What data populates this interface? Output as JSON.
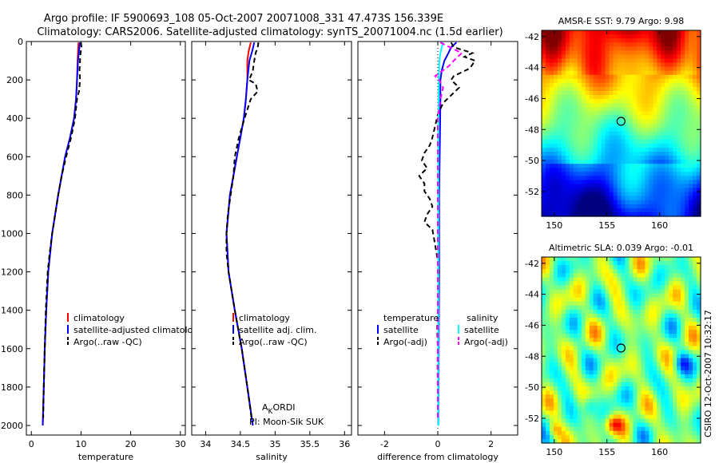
{
  "title_line1": "Argo profile: IF 5900693_108 05-Oct-2007 20071008_331 47.473S 156.339E",
  "title_line2": "Climatology: CARS2006. Satellite-adjusted climatology: synTS_20071004.nc (1.5d earlier)",
  "side_label": "CSIRO 12-Oct-2007 10:32:17",
  "colors": {
    "climatology": "#ff0000",
    "satellite": "#0000ff",
    "argo": "#000000",
    "temp_satellite": "#0000ff",
    "sal_satellite": "#00ffff",
    "sal_argo": "#ff00ff"
  },
  "chart_data": [
    {
      "type": "line",
      "xlabel": "temperature",
      "xlim": [
        -1,
        31
      ],
      "ylim": [
        0,
        2050
      ],
      "xticks": [
        "0",
        "10",
        "20",
        "30"
      ],
      "xtick_values": [
        0,
        10,
        20,
        30
      ],
      "yticks": [
        "0",
        "200",
        "400",
        "600",
        "800",
        "1000",
        "1200",
        "1400",
        "1600",
        "1800",
        "2000"
      ],
      "ytick_values": [
        0,
        200,
        400,
        600,
        800,
        1000,
        1200,
        1400,
        1600,
        1800,
        2000
      ],
      "legend": [
        "climatology",
        "satellite-adjusted climatology",
        "Argo(..raw -QC)"
      ],
      "series": [
        {
          "depth": [
            5,
            50,
            100,
            200,
            300,
            400,
            500,
            600,
            800,
            1000,
            1200,
            1400,
            1600,
            1800,
            2000
          ],
          "values": [
            9.5,
            9.4,
            9.3,
            9.2,
            9.0,
            8.6,
            7.8,
            6.8,
            5.4,
            4.2,
            3.4,
            3.0,
            2.7,
            2.5,
            2.3
          ]
        },
        {
          "depth": [
            5,
            50,
            100,
            200,
            300,
            400,
            500,
            600,
            800,
            1000,
            1200,
            1400,
            1600,
            1800,
            2000
          ],
          "values": [
            9.8,
            9.6,
            9.4,
            9.2,
            9.0,
            8.6,
            7.8,
            6.8,
            5.4,
            4.2,
            3.4,
            3.0,
            2.7,
            2.5,
            2.3
          ]
        },
        {
          "depth": [
            5,
            30,
            60,
            100,
            150,
            200,
            260,
            300,
            400,
            500,
            600,
            700,
            800,
            900,
            1000,
            1100,
            1200,
            1400,
            1600,
            1800,
            1960
          ],
          "values": [
            10.0,
            10.1,
            9.9,
            9.8,
            9.7,
            9.8,
            9.6,
            9.2,
            8.8,
            8.0,
            7.0,
            6.1,
            5.4,
            4.8,
            4.2,
            3.7,
            3.3,
            2.9,
            2.7,
            2.5,
            2.4
          ]
        }
      ]
    },
    {
      "type": "line",
      "xlabel": "salinity",
      "xlim": [
        33.8,
        36.1
      ],
      "ylim": [
        0,
        2050
      ],
      "xticks": [
        "34",
        "34.5",
        "35",
        "35.5",
        "36"
      ],
      "xtick_values": [
        34,
        34.5,
        35,
        35.5,
        36
      ],
      "legend": [
        "climatology",
        "satellite adj. clim.",
        "Argo(..raw -QC)"
      ],
      "annotation_lines": [
        "AKORDI",
        "PI: Moon-Sik SUK"
      ],
      "series": [
        {
          "depth": [
            5,
            50,
            100,
            200,
            300,
            400,
            500,
            600,
            800,
            1000,
            1200,
            1400,
            1600,
            1800,
            2000
          ],
          "values": [
            34.65,
            34.62,
            34.6,
            34.6,
            34.58,
            34.55,
            34.5,
            34.45,
            34.35,
            34.3,
            34.33,
            34.42,
            34.52,
            34.6,
            34.68
          ]
        },
        {
          "depth": [
            5,
            50,
            100,
            200,
            300,
            400,
            500,
            600,
            800,
            1000,
            1200,
            1400,
            1600,
            1800,
            2000
          ],
          "values": [
            34.7,
            34.67,
            34.63,
            34.6,
            34.58,
            34.55,
            34.5,
            34.45,
            34.35,
            34.3,
            34.33,
            34.42,
            34.52,
            34.6,
            34.68
          ]
        },
        {
          "depth": [
            5,
            30,
            60,
            100,
            150,
            180,
            200,
            220,
            260,
            300,
            400,
            500,
            600,
            700,
            800,
            900,
            1000,
            1100,
            1200,
            1400,
            1600,
            1800,
            1960
          ],
          "values": [
            34.76,
            34.75,
            34.72,
            34.7,
            34.68,
            34.65,
            34.62,
            34.72,
            34.75,
            34.65,
            34.56,
            34.48,
            34.42,
            34.4,
            34.36,
            34.32,
            34.3,
            34.3,
            34.33,
            34.42,
            34.52,
            34.6,
            34.66
          ]
        }
      ]
    },
    {
      "type": "line",
      "xlabel": "difference from climatology",
      "xlim": [
        -3,
        3
      ],
      "ylim": [
        0,
        2050
      ],
      "xticks": [
        "-2",
        "0",
        "2"
      ],
      "xtick_values": [
        -2,
        0,
        2
      ],
      "legend_temperature_title": "temperature",
      "legend_salinity_title": "salinity",
      "legend": [
        "satellite",
        "Argo(-adj)",
        "satellite",
        "Argo(-adj)"
      ],
      "series": [
        {
          "depth": [
            5,
            30,
            60,
            100,
            150,
            200,
            300,
            500,
            800,
            1000,
            1200,
            1500,
            1800,
            2000
          ],
          "values": [
            0.7,
            0.5,
            0.4,
            0.25,
            0.15,
            0.1,
            0.1,
            0.08,
            0.05,
            0.05,
            0.05,
            0.04,
            0.03,
            0.02
          ]
        },
        {
          "depth": [
            5,
            30,
            60,
            80,
            100,
            140,
            180,
            200,
            240,
            280,
            320,
            380,
            440,
            500,
            540,
            580,
            620,
            660,
            700,
            740,
            780,
            820,
            860,
            900,
            940,
            980,
            1020,
            1060,
            1100,
            1140,
            1200,
            1300,
            1400,
            1500,
            1600,
            1700,
            1800,
            1900,
            1960
          ],
          "values": [
            0.5,
            0.6,
            1.3,
            1.0,
            1.4,
            1.2,
            0.6,
            0.5,
            0.8,
            0.5,
            0.2,
            0.0,
            -0.1,
            -0.2,
            -0.3,
            -0.5,
            -0.6,
            -0.4,
            -0.7,
            -0.5,
            -0.5,
            -0.3,
            -0.2,
            -0.4,
            -0.5,
            -0.2,
            -0.15,
            -0.1,
            -0.05,
            0.0,
            0.05,
            0.02,
            0.0,
            -0.02,
            0.0,
            -0.01,
            0.0,
            0.0,
            0.0
          ]
        },
        {
          "depth": [
            5,
            30,
            60,
            100,
            200,
            300,
            500,
            800,
            1000,
            1200,
            1500,
            1800,
            2000
          ],
          "values": [
            0.2,
            0.15,
            0.1,
            0.06,
            0.04,
            0.03,
            0.02,
            0.02,
            0.02,
            0.02,
            0.02,
            0.02,
            0.02
          ]
        },
        {
          "depth": [
            5,
            30,
            60,
            100,
            130,
            160,
            180,
            200,
            240,
            300,
            400,
            500,
            600,
            800,
            1000,
            1200,
            1400,
            1600,
            1800,
            1960
          ],
          "values": [
            0.1,
            0.45,
            0.9,
            0.6,
            0.4,
            0.1,
            -0.1,
            0.05,
            0.2,
            0.1,
            0.0,
            0.0,
            0.0,
            0.0,
            0.0,
            0.0,
            0.0,
            0.0,
            0.0,
            0.0
          ]
        }
      ]
    },
    {
      "type": "heatmap",
      "title": "AMSR-E SST: 9.79 Argo: 9.98",
      "xlim": [
        148.8,
        163.9
      ],
      "ylim": [
        -53.6,
        -41.6
      ],
      "xticks": [
        "150",
        "155",
        "160"
      ],
      "xtick_values": [
        150,
        155,
        160
      ],
      "yticks": [
        "-42",
        "-44",
        "-46",
        "-48",
        "-50",
        "-52"
      ],
      "ytick_values": [
        -42,
        -44,
        -46,
        -48,
        -50,
        -52
      ],
      "marker": {
        "lon": 156.34,
        "lat": -47.47
      }
    },
    {
      "type": "heatmap",
      "title": "Altimetric SLA: 0.039 Argo: -0.01",
      "xlim": [
        148.8,
        163.9
      ],
      "ylim": [
        -53.6,
        -41.6
      ],
      "xticks": [
        "150",
        "155",
        "160"
      ],
      "xtick_values": [
        150,
        155,
        160
      ],
      "yticks": [
        "-42",
        "-44",
        "-46",
        "-48",
        "-50",
        "-52"
      ],
      "ytick_values": [
        -42,
        -44,
        -46,
        -48,
        -50,
        -52
      ],
      "marker": {
        "lon": 156.34,
        "lat": -47.47
      }
    }
  ]
}
